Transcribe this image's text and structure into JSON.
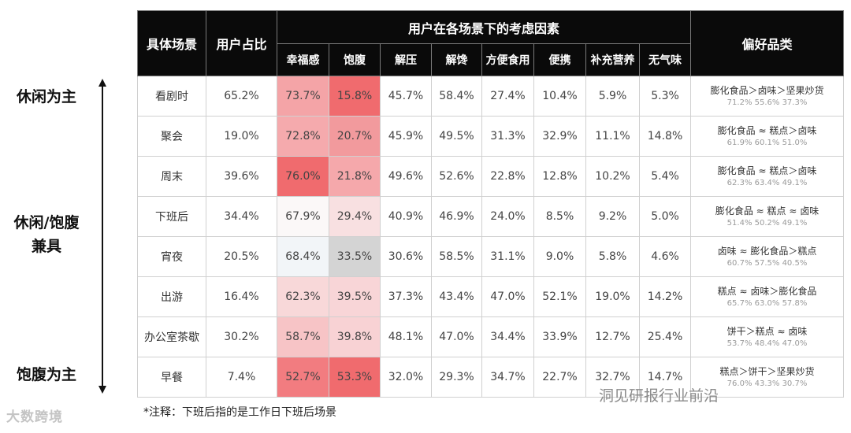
{
  "side_labels": {
    "top": "休闲为主",
    "middle_line1": "休闲/饱腹",
    "middle_line2": "兼具",
    "bottom": "饱腹为主"
  },
  "table": {
    "headers": {
      "scene": "具体场景",
      "share": "用户占比",
      "factors_group": "用户在各场景下的考虑因素",
      "factors": [
        "幸福感",
        "饱腹",
        "解压",
        "解馋",
        "方便食用",
        "便携",
        "补充营养",
        "无气味"
      ],
      "preference": "偏好品类"
    }
  },
  "chart_data": {
    "type": "table",
    "title": "",
    "columns": [
      "具体场景",
      "用户占比",
      "幸福感",
      "饱腹",
      "解压",
      "解馋",
      "方便食用",
      "便携",
      "补充营养",
      "无气味",
      "偏好品类"
    ],
    "heat_columns": [
      "幸福感",
      "饱腹"
    ],
    "rows": [
      {
        "scene": "看剧时",
        "share": "65.2%",
        "values": [
          "73.7%",
          "15.8%",
          "45.7%",
          "58.4%",
          "27.4%",
          "10.4%",
          "5.9%",
          "5.3%"
        ],
        "heat": [
          "#f4a4a7",
          "#f06b6e"
        ],
        "pref_top": "膨化食品＞卤味＞坚果炒货",
        "pref_bot": "71.2% 55.6% 37.3%"
      },
      {
        "scene": "聚会",
        "share": "19.0%",
        "values": [
          "72.8%",
          "20.7%",
          "45.9%",
          "49.5%",
          "31.3%",
          "32.9%",
          "11.1%",
          "14.8%"
        ],
        "heat": [
          "#f5aaad",
          "#f29a9d"
        ],
        "pref_top": "膨化食品 ≈ 糕点＞卤味",
        "pref_bot": "61.9% 60.1% 51.0%"
      },
      {
        "scene": "周末",
        "share": "39.6%",
        "values": [
          "76.0%",
          "21.8%",
          "49.6%",
          "52.6%",
          "22.8%",
          "12.8%",
          "10.2%",
          "5.4%"
        ],
        "heat": [
          "#f06b6e",
          "#f5a8ab"
        ],
        "pref_top": "膨化食品 ≈ 糕点＞卤味",
        "pref_bot": "62.3% 63.4% 49.1%"
      },
      {
        "scene": "下班后",
        "share": "34.4%",
        "values": [
          "67.9%",
          "29.4%",
          "40.9%",
          "46.9%",
          "24.0%",
          "8.5%",
          "9.2%",
          "5.0%"
        ],
        "heat": [
          "#fbf8f8",
          "#f8e0e1"
        ],
        "pref_top": "膨化食品 ≈ 糕点 ≈ 卤味",
        "pref_bot": "51.4% 50.2% 49.1%"
      },
      {
        "scene": "宵夜",
        "share": "20.5%",
        "values": [
          "68.4%",
          "33.5%",
          "30.6%",
          "58.5%",
          "31.1%",
          "9.0%",
          "5.8%",
          "4.6%"
        ],
        "heat": [
          "#f2f5f8",
          "#d4d4d4"
        ],
        "pref_top": "卤味 ≈ 膨化食品＞糕点",
        "pref_bot": "60.7% 57.5% 40.5%"
      },
      {
        "scene": "出游",
        "share": "16.4%",
        "values": [
          "62.3%",
          "39.5%",
          "37.3%",
          "43.4%",
          "47.0%",
          "52.1%",
          "19.0%",
          "14.2%"
        ],
        "heat": [
          "#f8d8d9",
          "#f8d5d7"
        ],
        "pref_top": "糕点 ≈ 卤味＞膨化食品",
        "pref_bot": "65.7% 63.0% 57.8%"
      },
      {
        "scene": "办公室茶歇",
        "share": "30.2%",
        "values": [
          "58.7%",
          "39.8%",
          "48.1%",
          "47.0%",
          "34.4%",
          "33.9%",
          "12.7%",
          "25.4%"
        ],
        "heat": [
          "#f7c4c6",
          "#f8d2d4"
        ],
        "pref_top": "饼干＞糕点 ≈ 卤味",
        "pref_bot": "53.7% 48.4% 47.0%"
      },
      {
        "scene": "早餐",
        "share": "7.4%",
        "values": [
          "52.7%",
          "53.3%",
          "32.0%",
          "29.3%",
          "34.7%",
          "22.7%",
          "32.7%",
          "14.7%"
        ],
        "heat": [
          "#f27c80",
          "#f06b6e"
        ],
        "pref_top": "糕点＞饼干＞坚果炒货",
        "pref_bot": "76.0% 43.3% 30.7%"
      }
    ]
  },
  "note": "*注释：下班后指的是工作日下班后场景",
  "watermarks": {
    "left": "大数跨境",
    "right": "洞见研报行业前沿"
  },
  "colors": {
    "header_bg": "#0a0a0a",
    "header_text": "#ffffff",
    "heat_strong": "#f06b6e"
  }
}
